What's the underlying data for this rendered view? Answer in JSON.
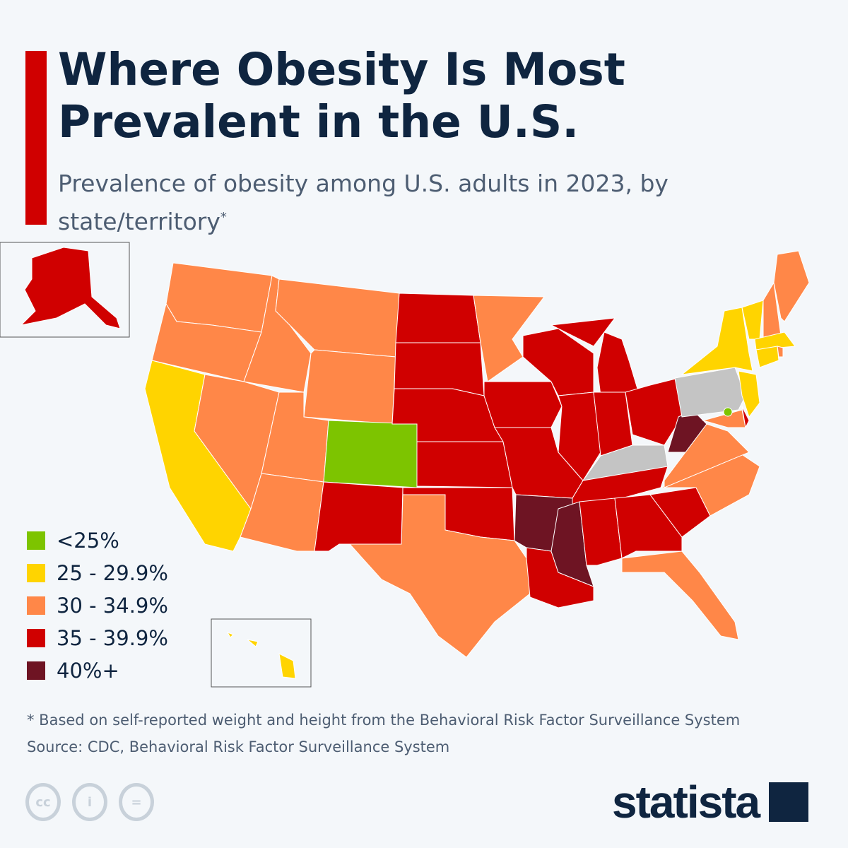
{
  "header": {
    "title": "Where Obesity Is Most Prevalent in the U.S.",
    "subtitle": "Prevalence of obesity among U.S. adults in 2023, by state/territory",
    "subtitle_mark": "*"
  },
  "colors": {
    "lt25": "#7dc400",
    "25-29.9": "#ffd400",
    "30-34.9": "#ff8748",
    "35-39.9": "#d00000",
    "40plus": "#6e1423",
    "no_data": "#c4c4c4",
    "accent": "#d00000"
  },
  "legend": [
    {
      "label": "<25%",
      "key": "lt25"
    },
    {
      "label": "25 - 29.9%",
      "key": "25-29.9"
    },
    {
      "label": "30 - 34.9%",
      "key": "30-34.9"
    },
    {
      "label": "35 - 39.9%",
      "key": "35-39.9"
    },
    {
      "label": "40%+",
      "key": "40plus"
    }
  ],
  "states": {
    "CO": "lt25",
    "DC": "lt25",
    "CA": "25-29.9",
    "NY": "25-29.9",
    "VT": "25-29.9",
    "MA": "25-29.9",
    "CT": "25-29.9",
    "NJ": "25-29.9",
    "HI": "25-29.9",
    "WA": "30-34.9",
    "OR": "30-34.9",
    "ID": "30-34.9",
    "MT": "30-34.9",
    "WY": "30-34.9",
    "NV": "30-34.9",
    "UT": "30-34.9",
    "AZ": "30-34.9",
    "TX": "30-34.9",
    "MN": "30-34.9",
    "ME": "30-34.9",
    "NH": "30-34.9",
    "RI": "30-34.9",
    "VA": "30-34.9",
    "NC": "30-34.9",
    "FL": "30-34.9",
    "MD": "30-34.9",
    "AK": "35-39.9",
    "ND": "35-39.9",
    "SD": "35-39.9",
    "NE": "35-39.9",
    "KS": "35-39.9",
    "OK": "35-39.9",
    "NM": "35-39.9",
    "IA": "35-39.9",
    "MO": "35-39.9",
    "WI": "35-39.9",
    "MI": "35-39.9",
    "IL": "35-39.9",
    "IN": "35-39.9",
    "OH": "35-39.9",
    "LA": "35-39.9",
    "TN": "35-39.9",
    "AL": "35-39.9",
    "GA": "35-39.9",
    "SC": "35-39.9",
    "DE": "35-39.9",
    "AR": "40plus",
    "MS": "40plus",
    "WV": "40plus",
    "PA": "no_data",
    "KY": "no_data"
  },
  "footer": {
    "note": "* Based on self-reported weight and height from the Behavioral Risk Factor Surveillance System",
    "source": "Source: CDC, Behavioral Risk Factor Surveillance System"
  },
  "brand": {
    "logo": "statista",
    "license_icons": [
      "cc",
      "by",
      "nd"
    ]
  }
}
